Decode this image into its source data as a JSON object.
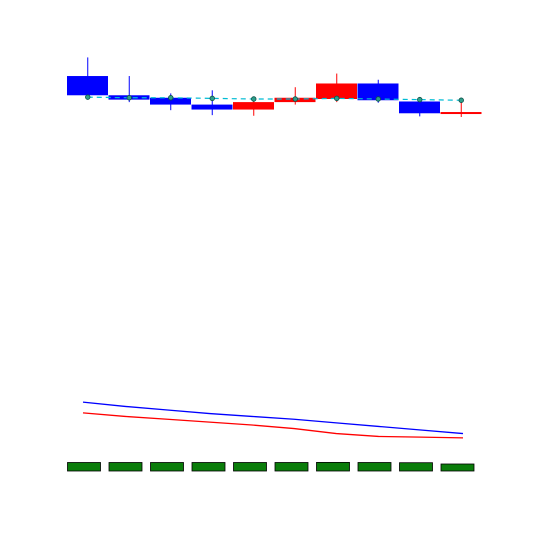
{
  "chart_data": [
    {
      "type": "candlestick",
      "title": "",
      "xlabel": "",
      "ylabel": "",
      "grid": false,
      "axes_visible": false,
      "x": [
        1,
        2,
        3,
        4,
        5,
        6,
        7,
        8,
        9,
        10
      ],
      "candles": [
        {
          "open": 103.0,
          "close": 99.9,
          "high": 106.0,
          "low": 99.4
        },
        {
          "open": 99.9,
          "close": 99.2,
          "high": 103.0,
          "low": 98.8
        },
        {
          "open": 99.5,
          "close": 98.4,
          "high": 100.2,
          "low": 97.5
        },
        {
          "open": 98.4,
          "close": 97.6,
          "high": 100.7,
          "low": 96.7
        },
        {
          "open": 97.6,
          "close": 98.8,
          "high": 99.5,
          "low": 96.6
        },
        {
          "open": 98.8,
          "close": 99.5,
          "high": 101.2,
          "low": 98.4
        },
        {
          "open": 99.3,
          "close": 101.8,
          "high": 103.4,
          "low": 98.8
        },
        {
          "open": 101.8,
          "close": 99.1,
          "high": 102.4,
          "low": 98.7
        },
        {
          "open": 98.9,
          "close": 97.0,
          "high": 99.6,
          "low": 96.5
        },
        {
          "open": 97.0,
          "close": 97.2,
          "high": 98.9,
          "low": 96.4
        }
      ],
      "overlay": {
        "type": "line",
        "style": "dashed",
        "color": "#00bcd4",
        "values": [
          99.6,
          99.5,
          99.5,
          99.4,
          99.3,
          99.3,
          99.4,
          99.3,
          99.2,
          99.1
        ]
      },
      "colors": {
        "up": "#ff0000",
        "down": "#0000ff"
      },
      "ylim": [
        93.5,
        108
      ]
    },
    {
      "type": "line",
      "title": "",
      "axes_visible": false,
      "x": [
        1,
        2,
        3,
        4,
        5,
        6,
        7,
        8,
        9,
        10
      ],
      "series": [
        {
          "color": "#0000ff",
          "values": [
            100.0,
            99.4,
            98.9,
            98.4,
            98.0,
            97.6,
            97.1,
            96.6,
            96.1,
            95.6
          ]
        },
        {
          "color": "#ff0000",
          "values": [
            98.5,
            98.0,
            97.6,
            97.2,
            96.8,
            96.3,
            95.6,
            95.2,
            95.1,
            95.0
          ]
        }
      ],
      "ylim": [
        94,
        101
      ]
    },
    {
      "type": "bar",
      "title": "",
      "axes_visible": false,
      "x": [
        1,
        2,
        3,
        4,
        5,
        6,
        7,
        8,
        9,
        10
      ],
      "values": [
        8.5,
        8.5,
        8.5,
        8.5,
        8.5,
        8.5,
        8.6,
        8.5,
        8.3,
        7.0
      ],
      "color": "#0a7d0a",
      "ylim": [
        0,
        10
      ]
    }
  ]
}
